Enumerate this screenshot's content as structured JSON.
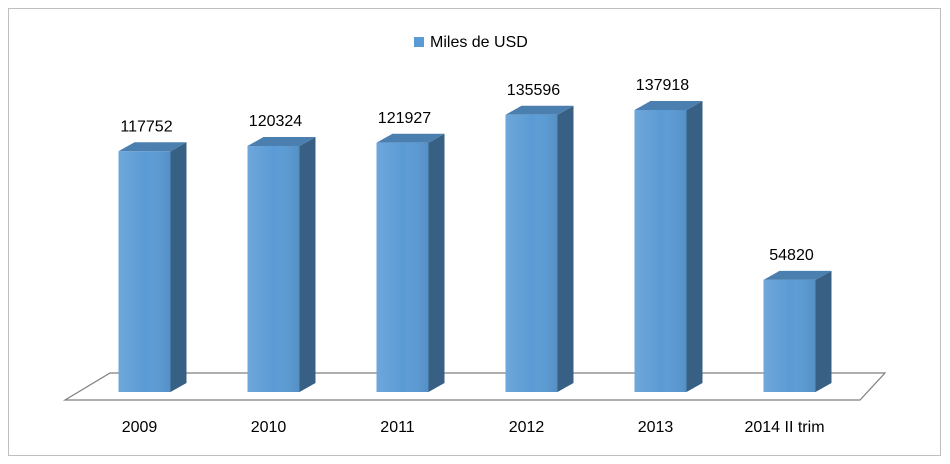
{
  "chart_data": {
    "type": "bar3d",
    "categories": [
      "2009",
      "2010",
      "2011",
      "2012",
      "2013",
      "2014 II trim"
    ],
    "series": [
      {
        "name": "Miles de USD",
        "color": "#5b9bd5",
        "values": [
          117752,
          120324,
          121927,
          135596,
          137918,
          54820
        ]
      }
    ],
    "legend": "top"
  }
}
